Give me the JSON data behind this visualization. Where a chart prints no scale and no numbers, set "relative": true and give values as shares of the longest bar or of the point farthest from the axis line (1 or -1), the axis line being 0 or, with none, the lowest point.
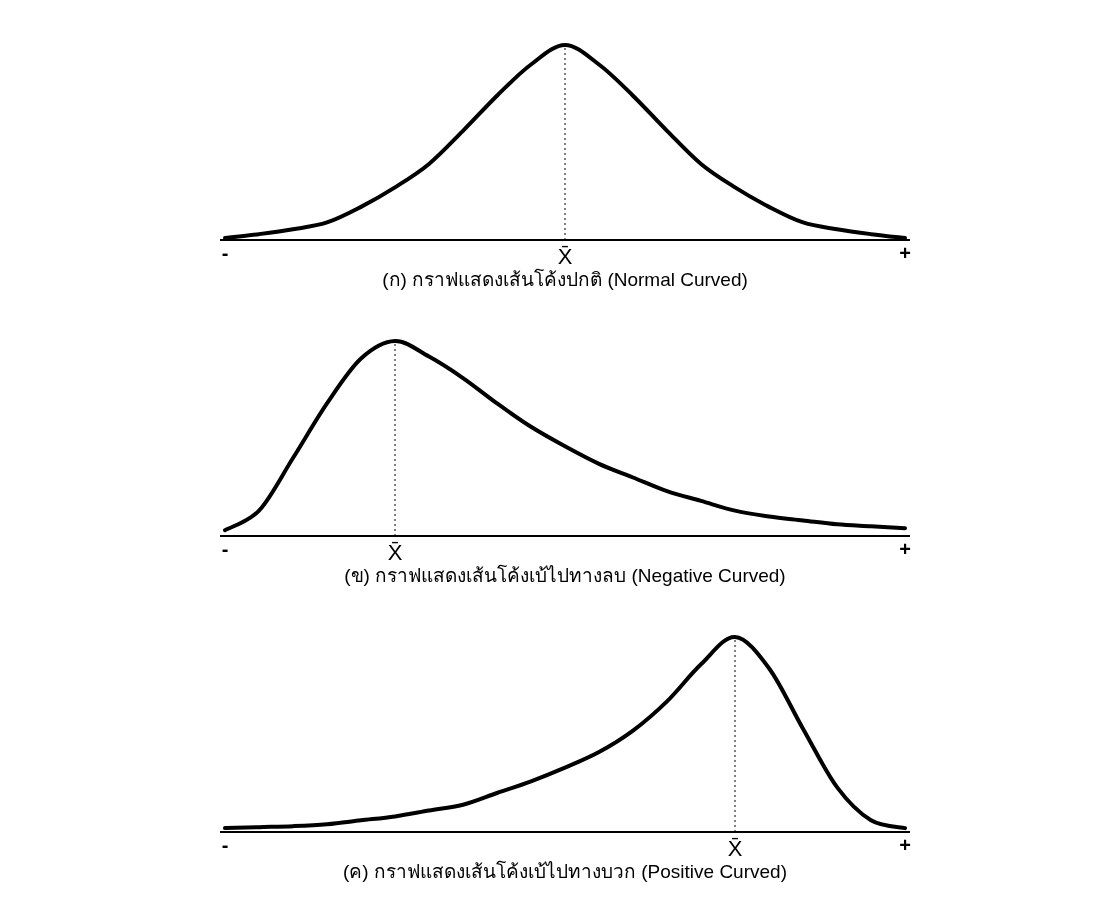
{
  "chart_data": [
    {
      "type": "line",
      "relative": true,
      "title": "(ก) กราฟแสดงเส้นโค้งปกติ (Normal Curved)",
      "categories": [
        "-",
        null,
        null,
        null,
        null,
        null,
        null,
        null,
        null,
        null,
        "X̄",
        null,
        null,
        null,
        null,
        null,
        null,
        null,
        null,
        null,
        "+"
      ],
      "ref_lines": [
        {
          "axis": "x",
          "value": "X̄",
          "line_style": "dotted"
        }
      ],
      "series": [
        {
          "color": "#000000",
          "values": [
            0.01,
            0.03,
            0.055,
            0.09,
            0.17,
            0.27,
            0.39,
            0.56,
            0.74,
            0.9,
            1,
            0.9,
            0.74,
            0.56,
            0.39,
            0.27,
            0.17,
            0.09,
            0.055,
            0.03,
            0.01
          ]
        }
      ]
    },
    {
      "type": "line",
      "relative": true,
      "title": "(ข) กราฟแสดงเส้นโค้งเบ้ไปทางลบ (Negative Curved)",
      "categories": [
        "-",
        null,
        null,
        null,
        null,
        "X̄",
        null,
        null,
        null,
        null,
        null,
        null,
        null,
        null,
        null,
        null,
        null,
        null,
        null,
        null,
        "+"
      ],
      "ref_lines": [
        {
          "axis": "x",
          "value": "X̄",
          "line_style": "dotted"
        }
      ],
      "series": [
        {
          "color": "#000000",
          "values": [
            0.03,
            0.13,
            0.4,
            0.68,
            0.91,
            1,
            0.92,
            0.81,
            0.68,
            0.56,
            0.46,
            0.37,
            0.3,
            0.23,
            0.18,
            0.13,
            0.1,
            0.08,
            0.06,
            0.05,
            0.04
          ]
        }
      ]
    },
    {
      "type": "line",
      "relative": true,
      "title": "(ค) กราฟแสดงเส้นโค้งเบ้ไปทางบวก (Positive Curved)",
      "categories": [
        "-",
        null,
        null,
        null,
        null,
        null,
        null,
        null,
        null,
        null,
        null,
        null,
        null,
        null,
        null,
        "X̄",
        null,
        null,
        null,
        null,
        "+"
      ],
      "ref_lines": [
        {
          "axis": "x",
          "value": "X̄",
          "line_style": "dotted"
        }
      ],
      "series": [
        {
          "color": "#000000",
          "values": [
            0.02,
            0.025,
            0.03,
            0.04,
            0.06,
            0.08,
            0.11,
            0.14,
            0.2,
            0.26,
            0.33,
            0.41,
            0.52,
            0.67,
            0.86,
            1,
            0.84,
            0.53,
            0.23,
            0.06,
            0.02
          ]
        }
      ]
    }
  ]
}
